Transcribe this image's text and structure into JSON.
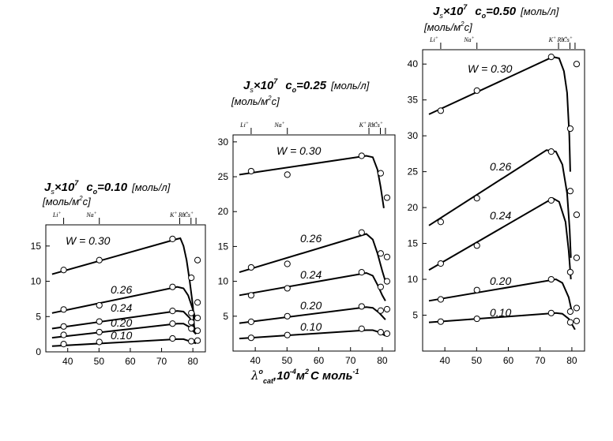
{
  "x_axis_label_parts": {
    "symbol": "λ",
    "sup": "o",
    "sub": "cat",
    "text1": ",10",
    "exp1": "-4",
    "text2": "м",
    "exp2": "2",
    "text3": "С моль",
    "exp3": "-1"
  },
  "chart_data": [
    {
      "type": "line",
      "title_parts": {
        "j": "J",
        "js": "s",
        "times": "×10",
        "exp": "7",
        "c": "c",
        "csub": "o",
        "cval": "=0.10",
        "unit": "[моль/л]"
      },
      "ylabel_parts": {
        "a": "[моль/м",
        "exp": "2",
        "b": "c]"
      },
      "xlim": [
        33,
        84
      ],
      "ylim": [
        0,
        18
      ],
      "xticks": [
        40,
        50,
        60,
        70,
        80
      ],
      "yticks": [
        0,
        5,
        10,
        15
      ],
      "ion_labels": [
        {
          "ion": "Li",
          "x": 38.7
        },
        {
          "ion": "Na",
          "x": 50.1
        },
        {
          "ion": "K",
          "x": 73.5
        },
        {
          "ion": "Rb",
          "x": 77.8
        },
        {
          "ion": "Cs",
          "x": 77.2
        }
      ],
      "series": [
        {
          "name": "W = 0.30",
          "line": [
            [
              35,
              11.0
            ],
            [
              75,
              16.0
            ],
            [
              76,
              16.1
            ],
            [
              77,
              15.0
            ],
            [
              78,
              13.0
            ],
            [
              79,
              10.0
            ],
            [
              80,
              6.5
            ],
            [
              80.5,
              3.0
            ]
          ],
          "points": [
            [
              38.7,
              11.6
            ],
            [
              50.1,
              13.0
            ],
            [
              73.5,
              16.0
            ],
            [
              79.5,
              10.5
            ],
            [
              81.5,
              13.0
            ]
          ]
        },
        {
          "name": "0.26",
          "line": [
            [
              35,
              5.5
            ],
            [
              75,
              9.2
            ],
            [
              77,
              9.0
            ],
            [
              78.5,
              8.0
            ],
            [
              80,
              6.0
            ],
            [
              81,
              4.5
            ]
          ],
          "points": [
            [
              38.7,
              6.0
            ],
            [
              50.1,
              6.6
            ],
            [
              73.5,
              9.2
            ],
            [
              79.5,
              5.5
            ],
            [
              81.5,
              7.0
            ]
          ]
        },
        {
          "name": "0.24",
          "line": [
            [
              35,
              3.3
            ],
            [
              75,
              5.8
            ],
            [
              77,
              5.7
            ],
            [
              79,
              4.8
            ],
            [
              81,
              3.0
            ]
          ],
          "points": [
            [
              38.7,
              3.6
            ],
            [
              50.1,
              4.3
            ],
            [
              73.5,
              5.8
            ],
            [
              79.5,
              4.2
            ],
            [
              81.5,
              4.8
            ]
          ]
        },
        {
          "name": "0.20",
          "line": [
            [
              35,
              2.0
            ],
            [
              75,
              4.0
            ],
            [
              77,
              4.0
            ],
            [
              79,
              3.5
            ],
            [
              81,
              2.5
            ]
          ],
          "points": [
            [
              38.7,
              2.4
            ],
            [
              50.1,
              2.8
            ],
            [
              73.5,
              4.0
            ],
            [
              79.5,
              3.3
            ],
            [
              81.5,
              3.0
            ]
          ]
        },
        {
          "name": "0.10",
          "line": [
            [
              35,
              0.8
            ],
            [
              75,
              1.8
            ],
            [
              77,
              1.8
            ],
            [
              79,
              1.5
            ],
            [
              81,
              1.2
            ]
          ],
          "points": [
            [
              38.7,
              1.1
            ],
            [
              50.1,
              1.4
            ],
            [
              73.5,
              1.9
            ],
            [
              79.5,
              1.5
            ],
            [
              81.5,
              1.6
            ]
          ]
        }
      ]
    },
    {
      "type": "line",
      "title_parts": {
        "j": "J",
        "js": "s",
        "times": "×10",
        "exp": "7",
        "c": "c",
        "csub": "o",
        "cval": "=0.25",
        "unit": "[моль/л]"
      },
      "ylabel_parts": {
        "a": "[моль/м",
        "exp": "2",
        "b": "c]"
      },
      "xlim": [
        33,
        84
      ],
      "ylim": [
        0,
        31
      ],
      "xticks": [
        40,
        50,
        60,
        70,
        80
      ],
      "yticks": [
        5,
        10,
        15,
        20,
        25,
        30
      ],
      "ion_labels": [
        {
          "ion": "Li",
          "x": 38.7
        },
        {
          "ion": "Na",
          "x": 50.1
        },
        {
          "ion": "K",
          "x": 73.5
        },
        {
          "ion": "Rb",
          "x": 77.8
        },
        {
          "ion": "Cs",
          "x": 77.2
        }
      ],
      "series": [
        {
          "name": "W = 0.30",
          "line": [
            [
              35,
              25.3
            ],
            [
              75,
              28.0
            ],
            [
              77,
              27.8
            ],
            [
              78.5,
              26.0
            ],
            [
              79.5,
              23.5
            ],
            [
              80.5,
              20.5
            ]
          ],
          "points": [
            [
              38.7,
              25.8
            ],
            [
              50.1,
              25.3
            ],
            [
              73.5,
              28.0
            ],
            [
              79.5,
              25.5
            ],
            [
              81.5,
              22.0
            ]
          ]
        },
        {
          "name": "0.26",
          "line": [
            [
              35,
              11.3
            ],
            [
              75,
              16.8
            ],
            [
              77,
              16.0
            ],
            [
              78.5,
              14.0
            ],
            [
              80,
              11.5
            ],
            [
              81,
              10.0
            ]
          ],
          "points": [
            [
              38.7,
              12.0
            ],
            [
              50.1,
              12.5
            ],
            [
              73.5,
              17.0
            ],
            [
              79.5,
              14.0
            ],
            [
              81.5,
              13.5
            ]
          ]
        },
        {
          "name": "0.24",
          "line": [
            [
              35,
              8.0
            ],
            [
              75,
              11.2
            ],
            [
              77,
              10.8
            ],
            [
              78.5,
              9.5
            ],
            [
              80,
              8.0
            ],
            [
              81,
              7.2
            ]
          ],
          "points": [
            [
              38.7,
              8.0
            ],
            [
              50.1,
              9.0
            ],
            [
              73.5,
              11.3
            ],
            [
              79.5,
              9.2
            ],
            [
              81.5,
              10.0
            ]
          ]
        },
        {
          "name": "0.20",
          "line": [
            [
              35,
              4.0
            ],
            [
              75,
              6.3
            ],
            [
              77,
              6.2
            ],
            [
              79,
              5.5
            ],
            [
              81,
              4.5
            ]
          ],
          "points": [
            [
              38.7,
              4.2
            ],
            [
              50.1,
              5.0
            ],
            [
              73.5,
              6.4
            ],
            [
              79.5,
              5.8
            ],
            [
              81.5,
              6.0
            ]
          ]
        },
        {
          "name": "0.10",
          "line": [
            [
              35,
              1.8
            ],
            [
              75,
              3.0
            ],
            [
              77,
              3.0
            ],
            [
              79,
              2.7
            ],
            [
              81,
              2.2
            ]
          ],
          "points": [
            [
              38.7,
              1.9
            ],
            [
              50.1,
              2.3
            ],
            [
              73.5,
              3.2
            ],
            [
              79.5,
              2.7
            ],
            [
              81.5,
              2.5
            ]
          ]
        }
      ]
    },
    {
      "type": "line",
      "title_parts": {
        "j": "J",
        "js": "s",
        "times": "×10",
        "exp": "7",
        "c": "c",
        "csub": "o",
        "cval": "=0.50",
        "unit": "[моль/л]"
      },
      "ylabel_parts": {
        "a": "[моль/м",
        "exp": "2",
        "b": "c]"
      },
      "xlim": [
        33,
        84
      ],
      "ylim": [
        0,
        42
      ],
      "xticks": [
        40,
        50,
        60,
        70,
        80
      ],
      "yticks": [
        5,
        10,
        15,
        20,
        25,
        30,
        35,
        40
      ],
      "ion_labels": [
        {
          "ion": "Li",
          "x": 38.7
        },
        {
          "ion": "Na",
          "x": 50.1
        },
        {
          "ion": "K",
          "x": 73.5
        },
        {
          "ion": "Rb",
          "x": 77.8
        },
        {
          "ion": "Cs",
          "x": 77.2
        }
      ],
      "series": [
        {
          "name": "W = 0.30",
          "line": [
            [
              35,
              33.0
            ],
            [
              74,
              41.0
            ],
            [
              76,
              40.8
            ],
            [
              77.5,
              39.0
            ],
            [
              78.5,
              36.0
            ],
            [
              79.2,
              30.0
            ],
            [
              79.5,
              25.0
            ]
          ],
          "points": [
            [
              38.7,
              33.5
            ],
            [
              50.1,
              36.3
            ],
            [
              73.5,
              41.0
            ],
            [
              79.5,
              31.0
            ],
            [
              81.5,
              40.0
            ]
          ]
        },
        {
          "name": "0.26",
          "line": [
            [
              35,
              17.5
            ],
            [
              72,
              28.0
            ],
            [
              75,
              27.8
            ],
            [
              77,
              26.0
            ],
            [
              78.5,
              22.0
            ],
            [
              79.3,
              17.0
            ],
            [
              79.7,
              13.0
            ]
          ],
          "points": [
            [
              38.7,
              18.0
            ],
            [
              50.1,
              21.3
            ],
            [
              73.5,
              27.8
            ],
            [
              79.5,
              22.3
            ],
            [
              81.5,
              19.0
            ]
          ]
        },
        {
          "name": "0.24",
          "line": [
            [
              35,
              11.3
            ],
            [
              74,
              21.3
            ],
            [
              76,
              20.8
            ],
            [
              78,
              18.0
            ],
            [
              79,
              14.0
            ],
            [
              79.7,
              10.0
            ]
          ],
          "points": [
            [
              38.7,
              12.2
            ],
            [
              50.1,
              14.7
            ],
            [
              73.5,
              21.0
            ],
            [
              79.5,
              11.0
            ],
            [
              81.5,
              13.0
            ]
          ]
        },
        {
          "name": "0.20",
          "line": [
            [
              35,
              7.0
            ],
            [
              75,
              10.0
            ],
            [
              77,
              9.5
            ],
            [
              79,
              7.5
            ],
            [
              80,
              5.5
            ]
          ],
          "points": [
            [
              38.7,
              7.2
            ],
            [
              50.1,
              8.5
            ],
            [
              73.5,
              10.0
            ],
            [
              79.5,
              5.5
            ],
            [
              81.5,
              6.0
            ]
          ]
        },
        {
          "name": "0.10",
          "line": [
            [
              35,
              4.0
            ],
            [
              75,
              5.3
            ],
            [
              77,
              5.2
            ],
            [
              79,
              4.5
            ],
            [
              81,
              3.0
            ]
          ],
          "points": [
            [
              38.7,
              4.1
            ],
            [
              50.1,
              4.5
            ],
            [
              73.5,
              5.3
            ],
            [
              79.5,
              4.0
            ],
            [
              81.5,
              4.2
            ]
          ]
        }
      ]
    }
  ]
}
